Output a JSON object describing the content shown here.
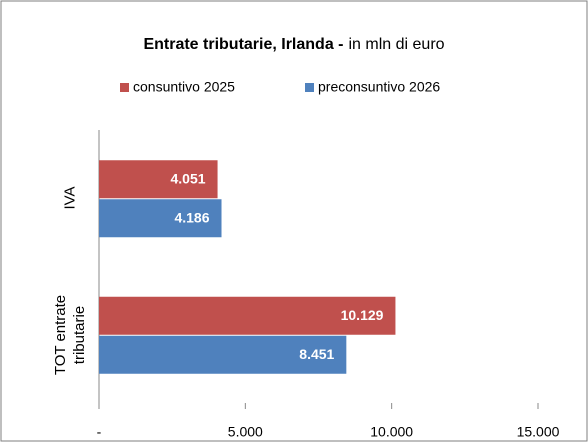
{
  "chart_data": {
    "type": "hbar",
    "title": "Entrate tributarie, Irlanda -",
    "subtitle": "in mln di euro",
    "categories": [
      "IVA",
      "TOT entrate tributarie"
    ],
    "series": [
      {
        "name": "consuntivo 2025",
        "color": "#c0504d",
        "values": [
          4051,
          10129
        ],
        "value_labels": [
          "4.051",
          "10.129"
        ]
      },
      {
        "name": "preconsuntivo 2026",
        "color": "#4f81bd",
        "values": [
          4186,
          8451
        ],
        "value_labels": [
          "4.186",
          "8.451"
        ]
      }
    ],
    "xlim": [
      0,
      15000
    ],
    "xticks": [
      {
        "value": 0,
        "label": "-"
      },
      {
        "value": 5000,
        "label": "5.000"
      },
      {
        "value": 10000,
        "label": "10.000"
      },
      {
        "value": 15000,
        "label": "15.000"
      }
    ],
    "legend": "top"
  }
}
